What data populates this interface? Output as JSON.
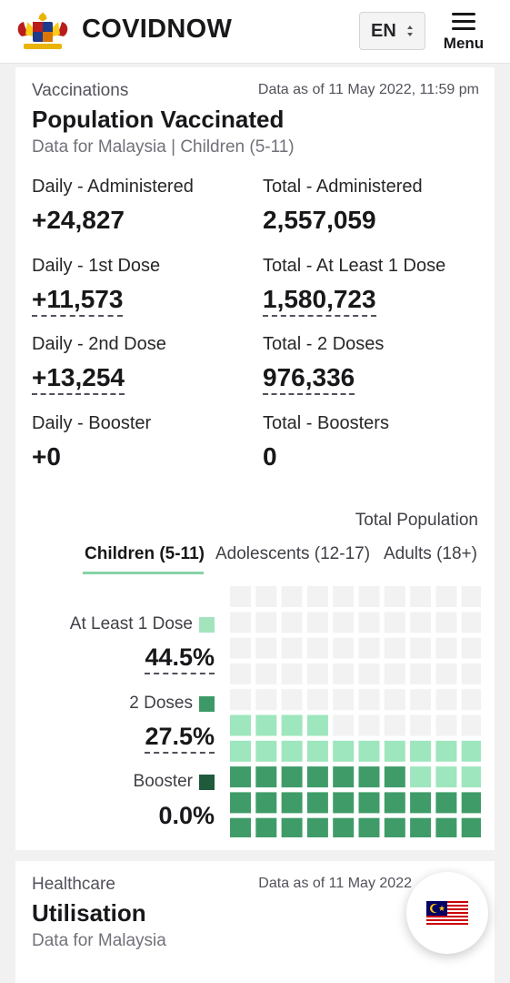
{
  "header": {
    "brand": "COVIDNOW",
    "language": "EN",
    "menu_label": "Menu"
  },
  "vaccination_card": {
    "eyebrow": "Vaccinations",
    "as_of": "Data as of 11 May 2022, 11:59 pm",
    "title": "Population Vaccinated",
    "subtitle": "Data for Malaysia | Children (5-11)",
    "stats": [
      {
        "label": "Daily - Administered",
        "value": "+24,827"
      },
      {
        "label": "Total - Administered",
        "value": "2,557,059"
      },
      {
        "label": "Daily - 1st Dose",
        "value": "+11,573"
      },
      {
        "label": "Total - At Least 1 Dose",
        "value": "1,580,723"
      },
      {
        "label": "Daily - 2nd Dose",
        "value": "+13,254"
      },
      {
        "label": "Total - 2 Doses",
        "value": "976,336"
      },
      {
        "label": "Daily - Booster",
        "value": "+0"
      },
      {
        "label": "Total - Boosters",
        "value": "0"
      }
    ],
    "total_population_label": "Total Population",
    "tabs": [
      {
        "label": "Children (5-11)",
        "active": true
      },
      {
        "label": "Adolescents (12-17)",
        "active": false
      },
      {
        "label": "Adults (18+)",
        "active": false
      }
    ],
    "legend": [
      {
        "label": "At Least 1 Dose",
        "value": "44.5%",
        "color": "#a3e4bd"
      },
      {
        "label": "2 Doses",
        "value": "27.5%",
        "color": "#3d9a67"
      },
      {
        "label": "Booster",
        "value": "0.0%",
        "color": "#1f5a3c"
      }
    ],
    "waffle": {
      "columns": 10,
      "rows": 10,
      "at_least_1_dose_cells": 44,
      "two_doses_cells": 27,
      "booster_cells": 0,
      "colors": {
        "empty": "#f2f2f3",
        "at_least_1_dose": "#9ee6bd",
        "two_doses": "#3f9c69"
      }
    }
  },
  "healthcare_card": {
    "eyebrow": "Healthcare",
    "as_of": "Data as of 11 May 2022",
    "title": "Utilisation",
    "subtitle": "Data for Malaysia"
  },
  "floating_button": {
    "icon": "malaysia-flag-icon"
  }
}
